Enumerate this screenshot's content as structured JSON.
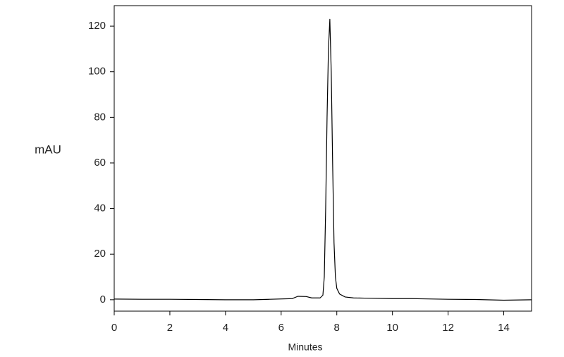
{
  "chart_data": {
    "type": "line",
    "x_label": "Minutes",
    "y_label": "mAU",
    "x": [
      0,
      1,
      2,
      3,
      4,
      5,
      5.6,
      6.4,
      6.6,
      6.9,
      7.1,
      7.4,
      7.5,
      7.55,
      7.6,
      7.65,
      7.7,
      7.75,
      7.8,
      7.85,
      7.9,
      7.95,
      8.0,
      8.1,
      8.3,
      8.6,
      9,
      10,
      10.7,
      11.1,
      12,
      13,
      14,
      15
    ],
    "series": [
      {
        "color": "#000000",
        "values": [
          0.3,
          0.2,
          0.2,
          0.1,
          0,
          0,
          0.2,
          0.5,
          1.5,
          1.4,
          0.8,
          0.8,
          2,
          10,
          40,
          80,
          110,
          123,
          100,
          60,
          25,
          10,
          5,
          2.5,
          1.2,
          0.8,
          0.7,
          0.5,
          0.5,
          0.4,
          0.2,
          0.1,
          -0.2,
          0
        ]
      }
    ],
    "xlim": [
      0,
      15
    ],
    "xticks": [
      0,
      2,
      4,
      6,
      8,
      10,
      12,
      14
    ],
    "ylim": [
      -5,
      129
    ],
    "yticks": [
      0,
      20,
      40,
      60,
      80,
      100,
      120
    ],
    "grid": false
  }
}
